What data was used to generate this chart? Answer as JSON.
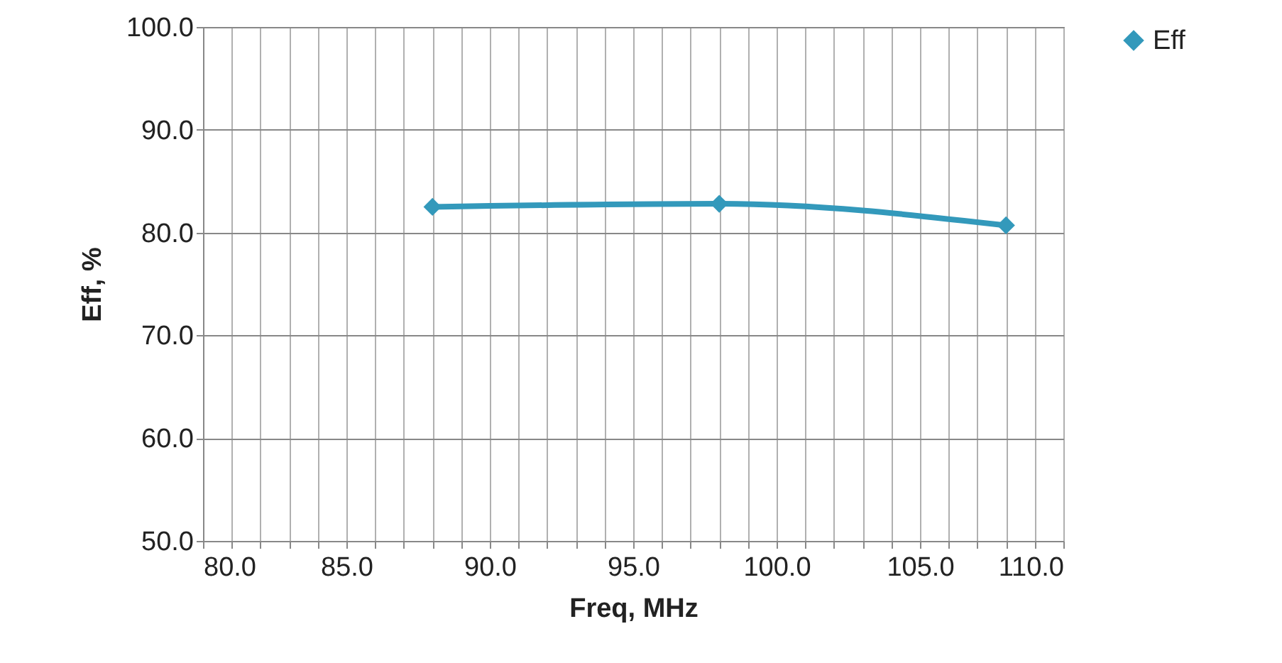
{
  "chart_data": {
    "type": "line",
    "xlabel": "Freq, MHz",
    "ylabel": "Eff, %",
    "x": [
      88,
      98,
      108
    ],
    "series": [
      {
        "name": "Eff",
        "color": "#3399bb",
        "values": [
          82.5,
          82.8,
          80.7
        ]
      }
    ],
    "xlim": [
      80,
      110
    ],
    "xticks": [
      {
        "value": 80,
        "label": "80.0"
      },
      {
        "value": 81,
        "label": null
      },
      {
        "value": 82,
        "label": null
      },
      {
        "value": 83,
        "label": null
      },
      {
        "value": 84,
        "label": null
      },
      {
        "value": 85,
        "label": "85.0"
      },
      {
        "value": 86,
        "label": null
      },
      {
        "value": 87,
        "label": null
      },
      {
        "value": 88,
        "label": null
      },
      {
        "value": 89,
        "label": null
      },
      {
        "value": 90,
        "label": "90.0"
      },
      {
        "value": 91,
        "label": null
      },
      {
        "value": 92,
        "label": null
      },
      {
        "value": 93,
        "label": null
      },
      {
        "value": 94,
        "label": null
      },
      {
        "value": 95,
        "label": "95.0"
      },
      {
        "value": 96,
        "label": null
      },
      {
        "value": 97,
        "label": null
      },
      {
        "value": 98,
        "label": null
      },
      {
        "value": 99,
        "label": null
      },
      {
        "value": 100,
        "label": "100.0"
      },
      {
        "value": 101,
        "label": null
      },
      {
        "value": 102,
        "label": null
      },
      {
        "value": 103,
        "label": null
      },
      {
        "value": 104,
        "label": null
      },
      {
        "value": 105,
        "label": "105.0"
      },
      {
        "value": 106,
        "label": null
      },
      {
        "value": 107,
        "label": null
      },
      {
        "value": 108,
        "label": null
      },
      {
        "value": 109,
        "label": null
      },
      {
        "value": 110,
        "label": "110.0"
      }
    ],
    "ylim": [
      50,
      100
    ],
    "yticks": [
      {
        "value": 50,
        "label": "50.0"
      },
      {
        "value": 60,
        "label": "60.0"
      },
      {
        "value": 70,
        "label": "70.0"
      },
      {
        "value": 80,
        "label": "80.0"
      },
      {
        "value": 90,
        "label": "90.0"
      },
      {
        "value": 100,
        "label": "100.0"
      }
    ],
    "grid": true,
    "legend": "right",
    "marker": "diamond",
    "line_style": "solid"
  }
}
